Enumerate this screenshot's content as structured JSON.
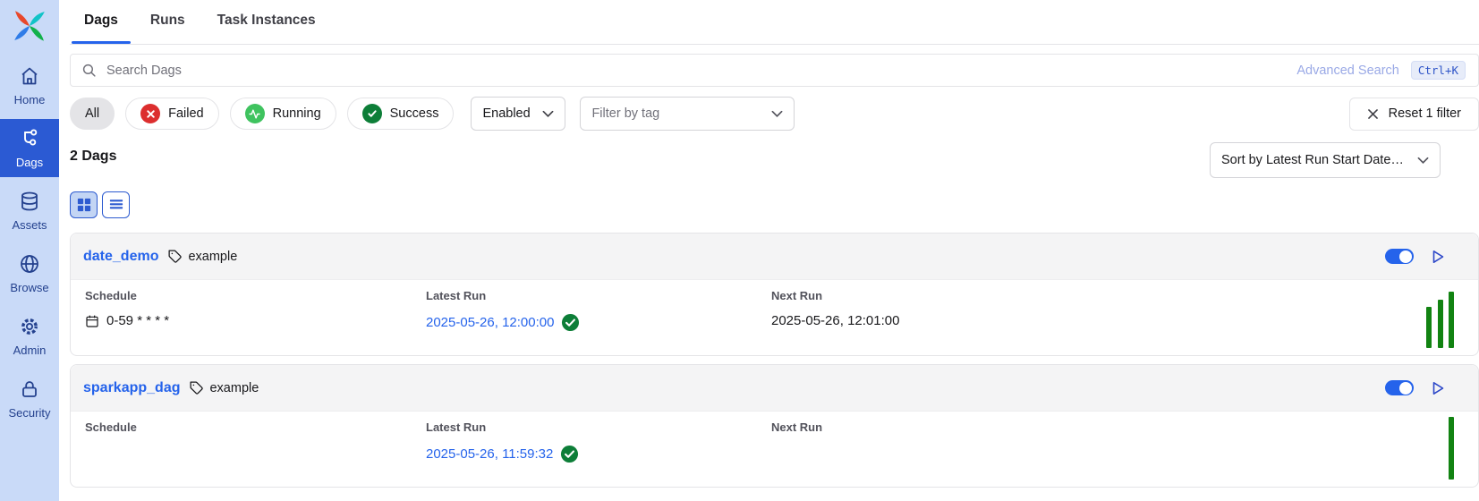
{
  "app": {
    "name": "Airflow"
  },
  "colors": {
    "accent_blue": "#2563eb",
    "sidebar_bg": "#c9daf8",
    "sidebar_active_bg": "#2b5ad3",
    "sidebar_text": "#24418e",
    "failed_red": "#dc2e2e",
    "running_green": "#3fc35f",
    "success_green": "#0d7e38",
    "bar_green": "#128312",
    "card_header_bg": "#f4f4f5",
    "border_gray": "#e4e4e7"
  },
  "sidebar": {
    "items": [
      {
        "label": "Home",
        "icon": "home-icon",
        "active": false
      },
      {
        "label": "Dags",
        "icon": "dag-graph-icon",
        "active": true
      },
      {
        "label": "Assets",
        "icon": "database-icon",
        "active": false
      },
      {
        "label": "Browse",
        "icon": "globe-icon",
        "active": false
      },
      {
        "label": "Admin",
        "icon": "gear-icon",
        "active": false
      },
      {
        "label": "Security",
        "icon": "lock-icon",
        "active": false
      }
    ]
  },
  "tabs": [
    {
      "label": "Dags",
      "active": true
    },
    {
      "label": "Runs",
      "active": false
    },
    {
      "label": "Task Instances",
      "active": false
    }
  ],
  "search": {
    "placeholder": "Search Dags",
    "advanced_label": "Advanced Search",
    "shortcut": "Ctrl+K",
    "icon": "search-icon"
  },
  "filters": {
    "all_label": "All",
    "failed_label": "Failed",
    "running_label": "Running",
    "success_label": "Success",
    "enabled_value": "Enabled",
    "tag_placeholder": "Filter by tag",
    "reset_label": "Reset 1 filter"
  },
  "listing": {
    "count": "2 Dags",
    "sort_value": "Sort by Latest Run Start Date…"
  },
  "card_labels": {
    "schedule": "Schedule",
    "latest_run": "Latest Run",
    "next_run": "Next Run"
  },
  "dags": [
    {
      "name": "date_demo",
      "tag": "example",
      "schedule": "0-59 * * * *",
      "latest_run": "2025-05-26, 12:00:00",
      "latest_run_status": "success",
      "next_run": "2025-05-26, 12:01:00",
      "enabled": true,
      "bars": [
        46,
        54,
        63
      ]
    },
    {
      "name": "sparkapp_dag",
      "tag": "example",
      "schedule": "",
      "latest_run": "2025-05-26, 11:59:32",
      "latest_run_status": "success",
      "next_run": "",
      "enabled": true,
      "bars": [
        70
      ]
    }
  ],
  "icons": [
    "airflow-pinwheel-logo",
    "home-icon",
    "dag-graph-icon",
    "database-icon",
    "globe-icon",
    "gear-icon",
    "lock-icon",
    "search-icon",
    "x-icon",
    "activity-icon",
    "check-icon",
    "chevron-down-icon",
    "grid-view-icon",
    "list-view-icon",
    "tag-icon",
    "calendar-icon",
    "play-icon",
    "check-badge-icon"
  ]
}
